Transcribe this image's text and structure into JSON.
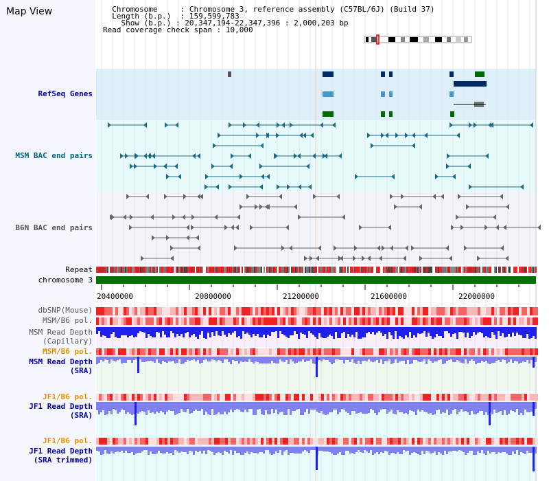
{
  "view_title": "Map View",
  "header": {
    "chromosome_key": "Chromosome",
    "chromosome_value": "Chromosome 3, reference assembly (C57BL/6J) (Build 37)",
    "length_key": "Length (b.p.)",
    "length_value": "159,599,783",
    "show_key": "Show (b.p.)",
    "show_value": "20,347,194-22,347,396 : 2,000,203 bp",
    "coverage_key": "Read coverage check span",
    "coverage_value": "10,000"
  },
  "tracks": {
    "refseq": "RefSeq Genes",
    "msm_bac": "MSM BAC end pairs",
    "b6n_bac": "B6N BAC end pairs",
    "repeat": "Repeat",
    "chromosome": "chromosome 3",
    "dbsnp": "dbSNP(Mouse)",
    "msm_b6_pol_1": "MSM/B6 pol.",
    "msm_depth_cap_1": "MSM Read Depth",
    "msm_depth_cap_2": "(Capillary)",
    "msm_b6_pol_2": "MSM/B6 pol.",
    "msm_depth_sra_1": "MSM Read Depth",
    "msm_depth_sra_2": "(SRA)",
    "jf1_b6_pol_1": "JF1/B6 pol.",
    "jf1_depth_sra_1": "JF1 Read Depth",
    "jf1_depth_sra_2": "(SRA)",
    "jf1_b6_pol_2": "JF1/B6 pol.",
    "jf1_depth_trim_1": "JF1 Read Depth",
    "jf1_depth_trim_2": "(SRA trimmed)"
  },
  "axis_ticks": [
    "20400000",
    "20800000",
    "21200000",
    "21600000",
    "22000000"
  ],
  "colors": {
    "refseq_label": "#000099",
    "msm_bac_label": "#006680",
    "b6n_bac_label": "#555555",
    "pol_label": "#e69500",
    "depth_label": "#000099",
    "refseq_bg": "#ddf0fa",
    "msm_bac_bg": "#e6fafa",
    "b6n_bac_bg": "#f3f3fa",
    "chromosome_bar": "#007000",
    "depth_blue": "#2020ee",
    "depth_light_blue": "#8080f0",
    "pol_red": "#ee2222",
    "pol_pink": "#f8b8b8"
  }
}
